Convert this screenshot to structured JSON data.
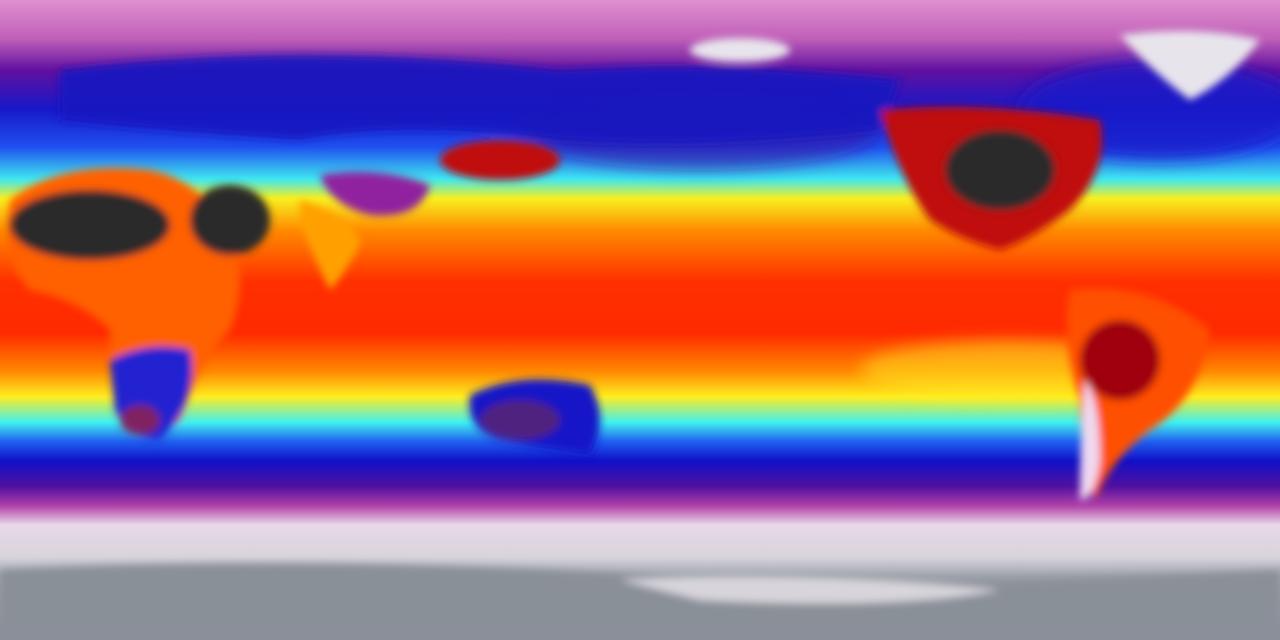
{
  "map": {
    "projection": "equirectangular",
    "colormap": [
      "#8a9098",
      "#e6e0e8",
      "#c040a8",
      "#8010a0",
      "#1010d0",
      "#20a0ff",
      "#40ffe0",
      "#ffff20",
      "#ff9000",
      "#ff2000",
      "#b00010",
      "#303030"
    ],
    "colors": {
      "polar_grey": "#8a9098",
      "cold_white": "#e8e4ec",
      "magenta": "#c040a8",
      "purple": "#6010a0",
      "blue": "#1818d8",
      "cyan": "#40f0f0",
      "yellow": "#ffee20",
      "orange": "#ff8800",
      "red": "#ff2a00",
      "hot_dark": "#2a2a2a"
    }
  }
}
